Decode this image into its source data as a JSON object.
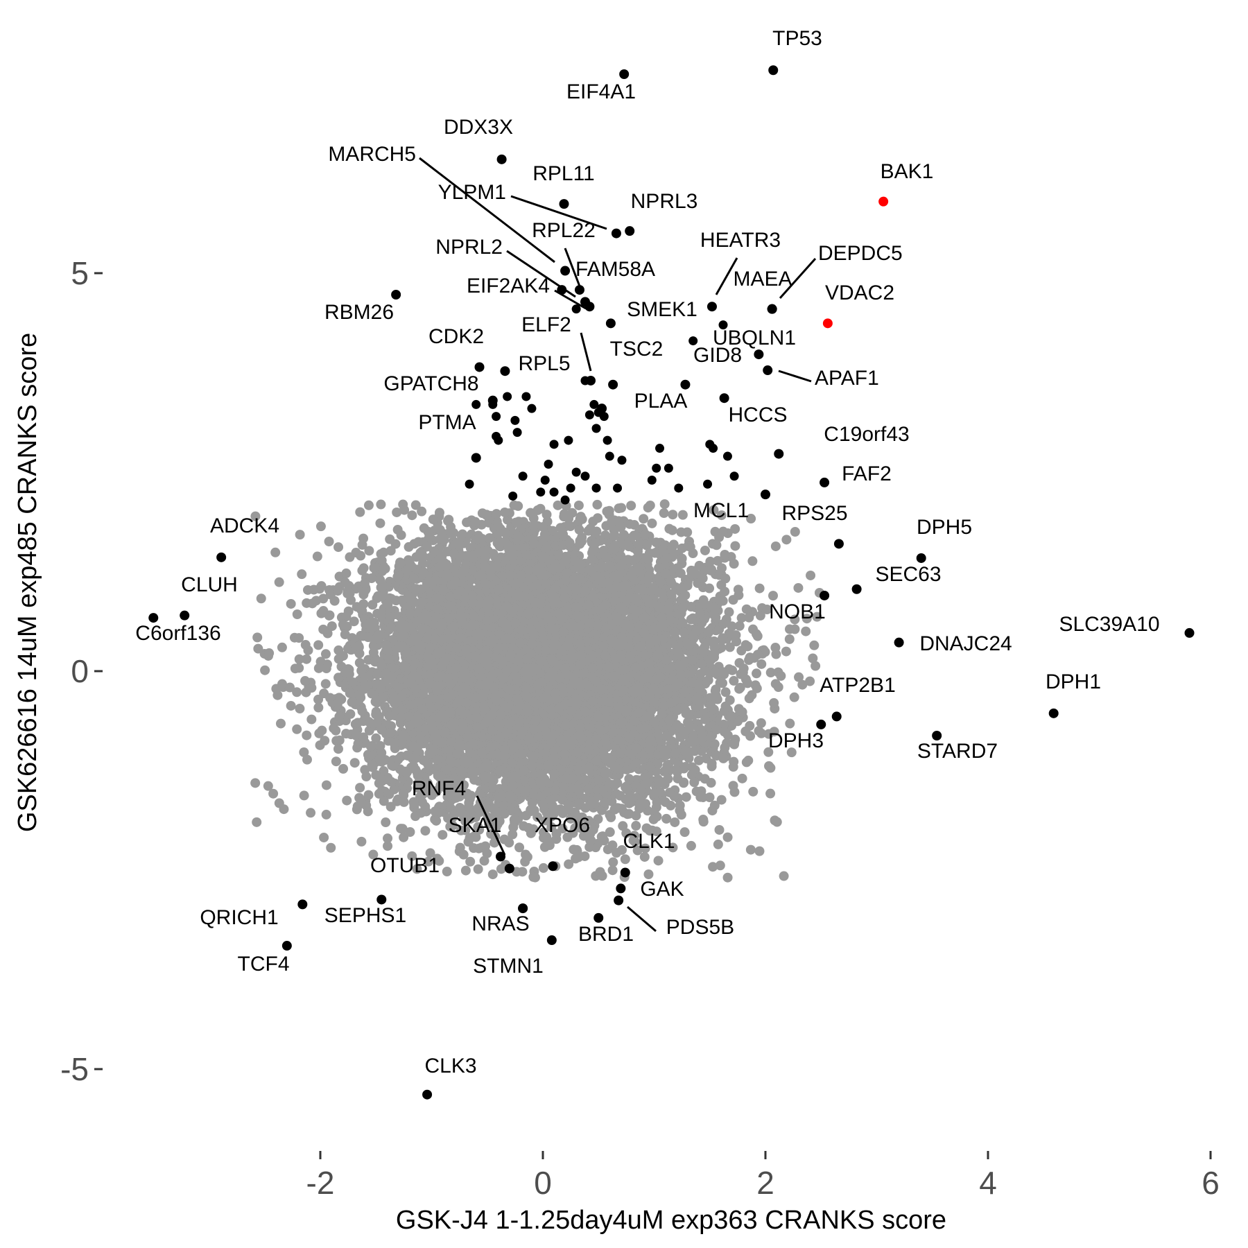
{
  "chart_data": {
    "type": "scatter",
    "title": "",
    "xlabel": "GSK-J4 1-1.25day4uM exp363 CRANKS score",
    "ylabel": "GSK626616 14uM exp485 CRANKS score",
    "xlim": [
      -3.6,
      6.1
    ],
    "ylim": [
      -5.9,
      8.3
    ],
    "x_ticks": [
      -2,
      0,
      2,
      4,
      6
    ],
    "x_tick_labels": [
      "-2",
      "0",
      "2",
      "4",
      "6"
    ],
    "y_ticks": [
      -5,
      0,
      5
    ],
    "y_tick_labels": [
      "-5",
      "0",
      "5"
    ],
    "grid": false,
    "legend": "none",
    "colors": {
      "background": "#ffffff",
      "points": "#999999",
      "highlight": "#000000",
      "special": "#ff0000",
      "tick": "#4d4d4d"
    },
    "background_cloud": {
      "n": 9000,
      "x_mean": 0.0,
      "x_sd": 0.8,
      "y_mean": 0.0,
      "y_sd": 0.9,
      "color": "#999999"
    },
    "points": [
      {
        "label": "TP53",
        "x": 2.07,
        "y": 7.55,
        "color": "#000000"
      },
      {
        "label": "EIF4A1",
        "x": 0.73,
        "y": 7.5,
        "color": "#000000"
      },
      {
        "label": "DDX3X",
        "x": -0.37,
        "y": 6.43,
        "color": "#000000"
      },
      {
        "label": "BAK1",
        "x": 3.06,
        "y": 5.9,
        "color": "#ff0000"
      },
      {
        "label": "MARCH5",
        "x": 0.2,
        "y": 5.03,
        "color": "#000000"
      },
      {
        "label": "RPL11",
        "x": 0.19,
        "y": 5.87,
        "color": "#000000"
      },
      {
        "label": "YLPM1",
        "x": 0.66,
        "y": 5.5,
        "color": "#000000"
      },
      {
        "label": "NPRL3",
        "x": 0.78,
        "y": 5.53,
        "color": "#000000"
      },
      {
        "label": "RPL22",
        "x": 0.33,
        "y": 4.79,
        "color": "#000000"
      },
      {
        "label": "NPRL2",
        "x": 0.42,
        "y": 4.58,
        "color": "#000000"
      },
      {
        "label": "FAM58A",
        "x": 0.38,
        "y": 4.64,
        "color": "#000000"
      },
      {
        "label": "EIF2AK4",
        "x": 0.17,
        "y": 4.79,
        "color": "#000000"
      },
      {
        "label": "RBM26",
        "x": -1.32,
        "y": 4.73,
        "color": "#000000"
      },
      {
        "label": "HEATR3",
        "x": 1.52,
        "y": 4.58,
        "color": "#000000"
      },
      {
        "label": "MAEA",
        "x": 2.06,
        "y": 4.55,
        "color": "#000000"
      },
      {
        "label": "DEPDC5",
        "x": 2.06,
        "y": 4.55,
        "color": "#000000"
      },
      {
        "label": "VDAC2",
        "x": 2.56,
        "y": 4.37,
        "color": "#ff0000"
      },
      {
        "label": "SMEK1",
        "x": 0.61,
        "y": 4.37,
        "color": "#000000"
      },
      {
        "label": "ELF2",
        "x": 0.43,
        "y": 3.65,
        "color": "#000000"
      },
      {
        "label": "UBQLN1",
        "x": 1.94,
        "y": 3.98,
        "color": "#000000"
      },
      {
        "label": "APAF1",
        "x": 2.02,
        "y": 3.78,
        "color": "#000000"
      },
      {
        "label": "GID8",
        "x": 1.28,
        "y": 3.6,
        "color": "#000000"
      },
      {
        "label": "CDK2",
        "x": -0.57,
        "y": 3.82,
        "color": "#000000"
      },
      {
        "label": "RPL5",
        "x": -0.34,
        "y": 3.77,
        "color": "#000000"
      },
      {
        "label": "TSC2",
        "x": 0.63,
        "y": 3.6,
        "color": "#000000"
      },
      {
        "label": "GPATCH8",
        "x": -0.45,
        "y": 3.4,
        "color": "#000000"
      },
      {
        "label": "PLAA",
        "x": 0.53,
        "y": 3.3,
        "color": "#000000"
      },
      {
        "label": "HCCS",
        "x": 1.63,
        "y": 3.43,
        "color": "#000000"
      },
      {
        "label": "PTMA",
        "x": -0.6,
        "y": 2.68,
        "color": "#000000"
      },
      {
        "label": "C19orf43",
        "x": 2.12,
        "y": 2.73,
        "color": "#000000"
      },
      {
        "label": "FAF2",
        "x": 2.53,
        "y": 2.37,
        "color": "#000000"
      },
      {
        "label": "MCL1",
        "x": 2.0,
        "y": 2.22,
        "color": "#000000"
      },
      {
        "label": "RPS25",
        "x": 2.66,
        "y": 1.6,
        "color": "#000000"
      },
      {
        "label": "DPH5",
        "x": 3.4,
        "y": 1.42,
        "color": "#000000"
      },
      {
        "label": "SEC63",
        "x": 2.82,
        "y": 1.03,
        "color": "#000000"
      },
      {
        "label": "NOB1",
        "x": 2.53,
        "y": 0.95,
        "color": "#000000"
      },
      {
        "label": "ADCK4",
        "x": -2.89,
        "y": 1.43,
        "color": "#000000"
      },
      {
        "label": "CLUH",
        "x": -3.22,
        "y": 0.7,
        "color": "#000000"
      },
      {
        "label": "C6orf136",
        "x": -3.5,
        "y": 0.67,
        "color": "#000000"
      },
      {
        "label": "SLC39A10",
        "x": 5.81,
        "y": 0.48,
        "color": "#000000"
      },
      {
        "label": "DNAJC24",
        "x": 3.2,
        "y": 0.36,
        "color": "#000000"
      },
      {
        "label": "ATP2B1",
        "x": 2.64,
        "y": -0.57,
        "color": "#000000"
      },
      {
        "label": "DPH1",
        "x": 4.59,
        "y": -0.53,
        "color": "#000000"
      },
      {
        "label": "DPH3",
        "x": 2.5,
        "y": -0.67,
        "color": "#000000"
      },
      {
        "label": "STARD7",
        "x": 3.54,
        "y": -0.81,
        "color": "#000000"
      },
      {
        "label": "RNF4",
        "x": -0.38,
        "y": -2.33,
        "color": "#000000"
      },
      {
        "label": "SKA1",
        "x": -0.3,
        "y": -2.48,
        "color": "#000000"
      },
      {
        "label": "XPO6",
        "x": 0.09,
        "y": -2.45,
        "color": "#000000"
      },
      {
        "label": "CLK1",
        "x": 0.74,
        "y": -2.53,
        "color": "#000000"
      },
      {
        "label": "OTUB1",
        "x": -1.45,
        "y": -2.87,
        "color": "#000000"
      },
      {
        "label": "GAK",
        "x": 0.7,
        "y": -2.73,
        "color": "#000000"
      },
      {
        "label": "PDS5B",
        "x": 0.68,
        "y": -2.88,
        "color": "#000000"
      },
      {
        "label": "QRICH1",
        "x": -2.16,
        "y": -2.93,
        "color": "#000000"
      },
      {
        "label": "SEPHS1",
        "x": -0.18,
        "y": -2.98,
        "color": "#000000"
      },
      {
        "label": "NRAS",
        "x": -0.18,
        "y": -2.98,
        "color": "#000000"
      },
      {
        "label": "BRD1",
        "x": 0.5,
        "y": -3.1,
        "color": "#000000"
      },
      {
        "label": "STMN1",
        "x": 0.08,
        "y": -3.38,
        "color": "#000000"
      },
      {
        "label": "TCF4",
        "x": -2.3,
        "y": -3.45,
        "color": "#000000"
      },
      {
        "label": "CLK3",
        "x": -1.04,
        "y": -5.32,
        "color": "#000000"
      }
    ],
    "unlabeled_points": [
      {
        "x": -0.66,
        "y": 2.35
      },
      {
        "x": -0.4,
        "y": 2.9
      },
      {
        "x": -0.23,
        "y": 3.0
      },
      {
        "x": -0.15,
        "y": 3.45
      },
      {
        "x": -0.1,
        "y": 3.3
      },
      {
        "x": -0.25,
        "y": 3.15
      },
      {
        "x": -0.42,
        "y": 3.2
      },
      {
        "x": -0.45,
        "y": 3.35
      },
      {
        "x": -0.32,
        "y": 3.45
      },
      {
        "x": 0.1,
        "y": 2.85
      },
      {
        "x": 0.23,
        "y": 2.9
      },
      {
        "x": 0.05,
        "y": 2.6
      },
      {
        "x": -0.18,
        "y": 2.45
      },
      {
        "x": 0.3,
        "y": 2.5
      },
      {
        "x": 0.48,
        "y": 2.3
      },
      {
        "x": 0.38,
        "y": 2.45
      },
      {
        "x": 0.6,
        "y": 2.7
      },
      {
        "x": 0.71,
        "y": 2.65
      },
      {
        "x": 0.58,
        "y": 2.9
      },
      {
        "x": 0.5,
        "y": 3.25
      },
      {
        "x": 0.46,
        "y": 3.35
      },
      {
        "x": 0.55,
        "y": 3.2
      },
      {
        "x": 0.42,
        "y": 3.22
      },
      {
        "x": 0.48,
        "y": 3.05
      },
      {
        "x": 0.67,
        "y": 2.3
      },
      {
        "x": 0.1,
        "y": 2.25
      },
      {
        "x": -0.02,
        "y": 2.25
      },
      {
        "x": -0.27,
        "y": 2.2
      },
      {
        "x": 0.2,
        "y": 2.15
      },
      {
        "x": 0.25,
        "y": 2.3
      },
      {
        "x": 0.02,
        "y": 2.4
      },
      {
        "x": 0.98,
        "y": 2.4
      },
      {
        "x": 1.02,
        "y": 2.55
      },
      {
        "x": 1.13,
        "y": 2.55
      },
      {
        "x": 1.05,
        "y": 2.8
      },
      {
        "x": 1.22,
        "y": 2.3
      },
      {
        "x": 1.5,
        "y": 2.85
      },
      {
        "x": 1.53,
        "y": 2.8
      },
      {
        "x": 1.66,
        "y": 2.7
      },
      {
        "x": 1.72,
        "y": 2.45
      },
      {
        "x": 1.48,
        "y": 2.35
      },
      {
        "x": 0.3,
        "y": 4.55
      },
      {
        "x": 1.35,
        "y": 4.15
      },
      {
        "x": 1.62,
        "y": 4.35
      },
      {
        "x": 0.38,
        "y": 3.65
      },
      {
        "x": -0.6,
        "y": 3.35
      },
      {
        "x": -0.42,
        "y": 2.95
      }
    ]
  }
}
